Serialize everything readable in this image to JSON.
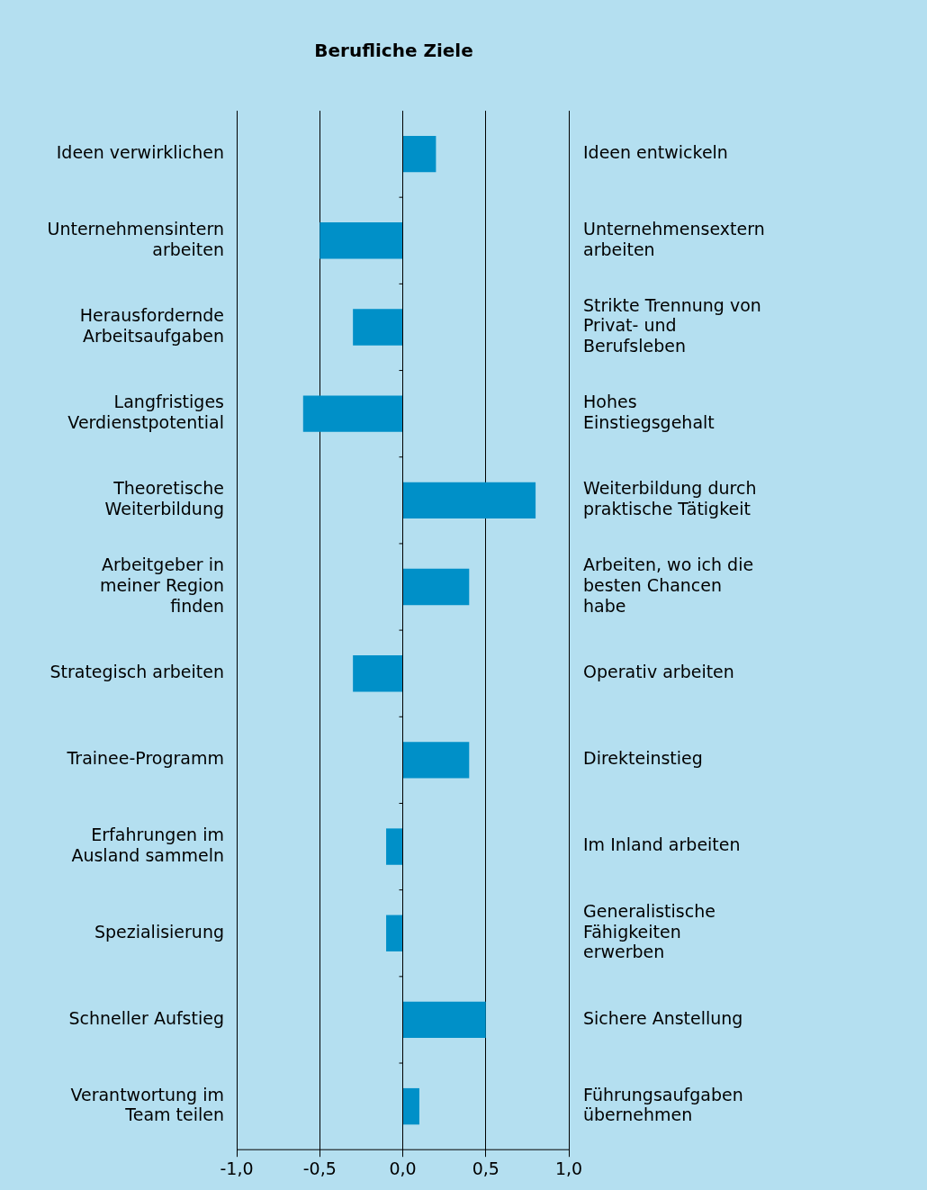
{
  "chart_data": {
    "type": "bar",
    "orientation": "horizontal",
    "title": "Berufliche Ziele",
    "categories": [
      "Ideen verwirklichen",
      "Unternehmensintern\narbeiten",
      "Herausfordernde\nArbeitsaufgaben",
      "Langfristiges\nVerdienstpotential",
      "Theoretische\nWeiterbildung",
      "Arbeitgeber in\nmeiner Region\nfinden",
      "Strategisch arbeiten",
      "Trainee-Programm",
      "Erfahrungen im\nAusland sammeln",
      "Spezialisierung",
      "Schneller Aufstieg",
      "Verantwortung im\nTeam teilen"
    ],
    "y2_categories": [
      "Ideen entwickeln",
      "Unternehmensextern\narbeiten",
      "Strikte Trennung von\nPrivat- und\nBerufsleben",
      "Hohes\nEinstiegsgehalt",
      "Weiterbildung durch\npraktische Tätigkeit",
      "Arbeiten, wo ich die\nbesten Chancen\nhabe",
      "Operativ arbeiten",
      "Direkteinstieg",
      "Im Inland arbeiten",
      "Generalistische\nFähigkeiten\nerwerben",
      "Sichere Anstellung",
      "Führungsaufgaben\nübernehmen"
    ],
    "values": [
      0.2,
      -0.5,
      -0.3,
      -0.6,
      0.8,
      0.4,
      -0.3,
      0.4,
      -0.1,
      -0.1,
      0.5,
      0.1
    ],
    "color": "#0090c8",
    "xlim": [
      -1,
      1
    ],
    "xticks": [
      {
        "value": -1,
        "label": "-1,0"
      },
      {
        "value": -0.5,
        "label": "-0,5"
      },
      {
        "value": 0,
        "label": "0,0"
      },
      {
        "value": 0.5,
        "label": "0,5"
      },
      {
        "value": 1,
        "label": "1,0"
      }
    ],
    "grid": "x"
  }
}
